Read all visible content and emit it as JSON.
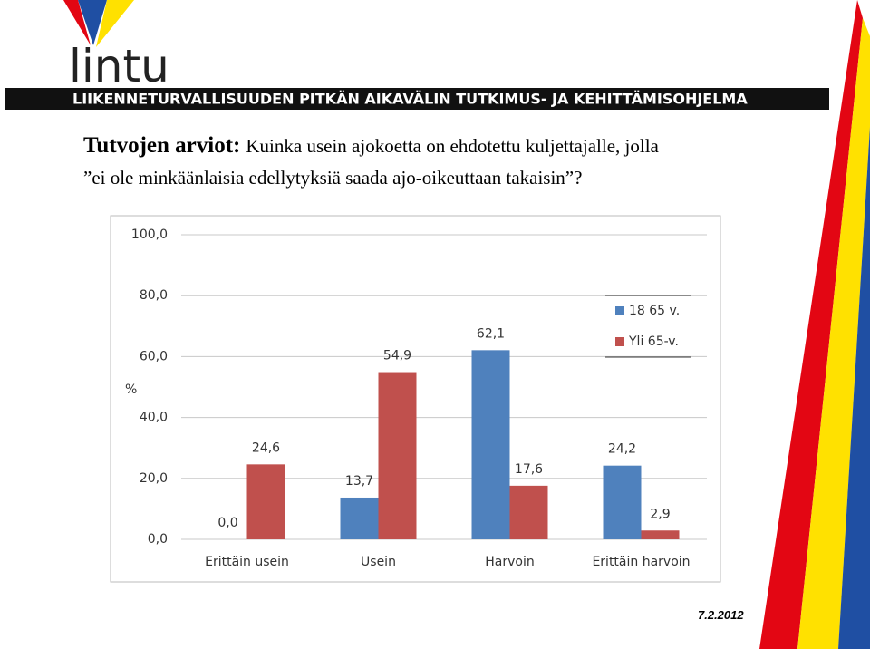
{
  "logo": "lintu",
  "banner": "LIIKENNETURVALLISUUDEN PITKÄN AIKAVÄLIN TUTKIMUS- JA KEHITTÄMISOHJELMA",
  "heading": {
    "lead": "Tutvojen arviot:",
    "question_line1": "Kuinka usein ajokoetta on ehdotettu kuljettajalle, jolla",
    "question_line2": "”ei ole minkäänlaisia edellytyksiä saada ajo-oikeuttaan takaisin”?"
  },
  "date": "7.2.2012",
  "chart_data": {
    "type": "bar",
    "y_label": "%",
    "categories": [
      "Erittäin usein",
      "Usein",
      "Harvoin",
      "Erittäin harvoin"
    ],
    "series": [
      {
        "name": "18 65 v.",
        "color": "#4f81bd",
        "values": [
          0,
          13.7,
          62.1,
          24.2
        ],
        "value_labels": [
          "0,0",
          "13,7",
          "62,1",
          "24,2"
        ]
      },
      {
        "name": "Yli 65-v.",
        "color": "#c0504d",
        "values": [
          24.6,
          54.9,
          17.6,
          2.9
        ],
        "value_labels": [
          "24,6",
          "54,9",
          "17,6",
          "2,9"
        ]
      }
    ],
    "ylim": [
      0,
      100
    ],
    "yticks": [
      {
        "value": 0,
        "label": "0,0"
      },
      {
        "value": 20,
        "label": "20,0"
      },
      {
        "value": 40,
        "label": "40,0"
      },
      {
        "value": 60,
        "label": "60,0"
      },
      {
        "value": 80,
        "label": "80,0"
      },
      {
        "value": 100,
        "label": "100,0"
      }
    ],
    "grid": true,
    "legend": "right"
  }
}
